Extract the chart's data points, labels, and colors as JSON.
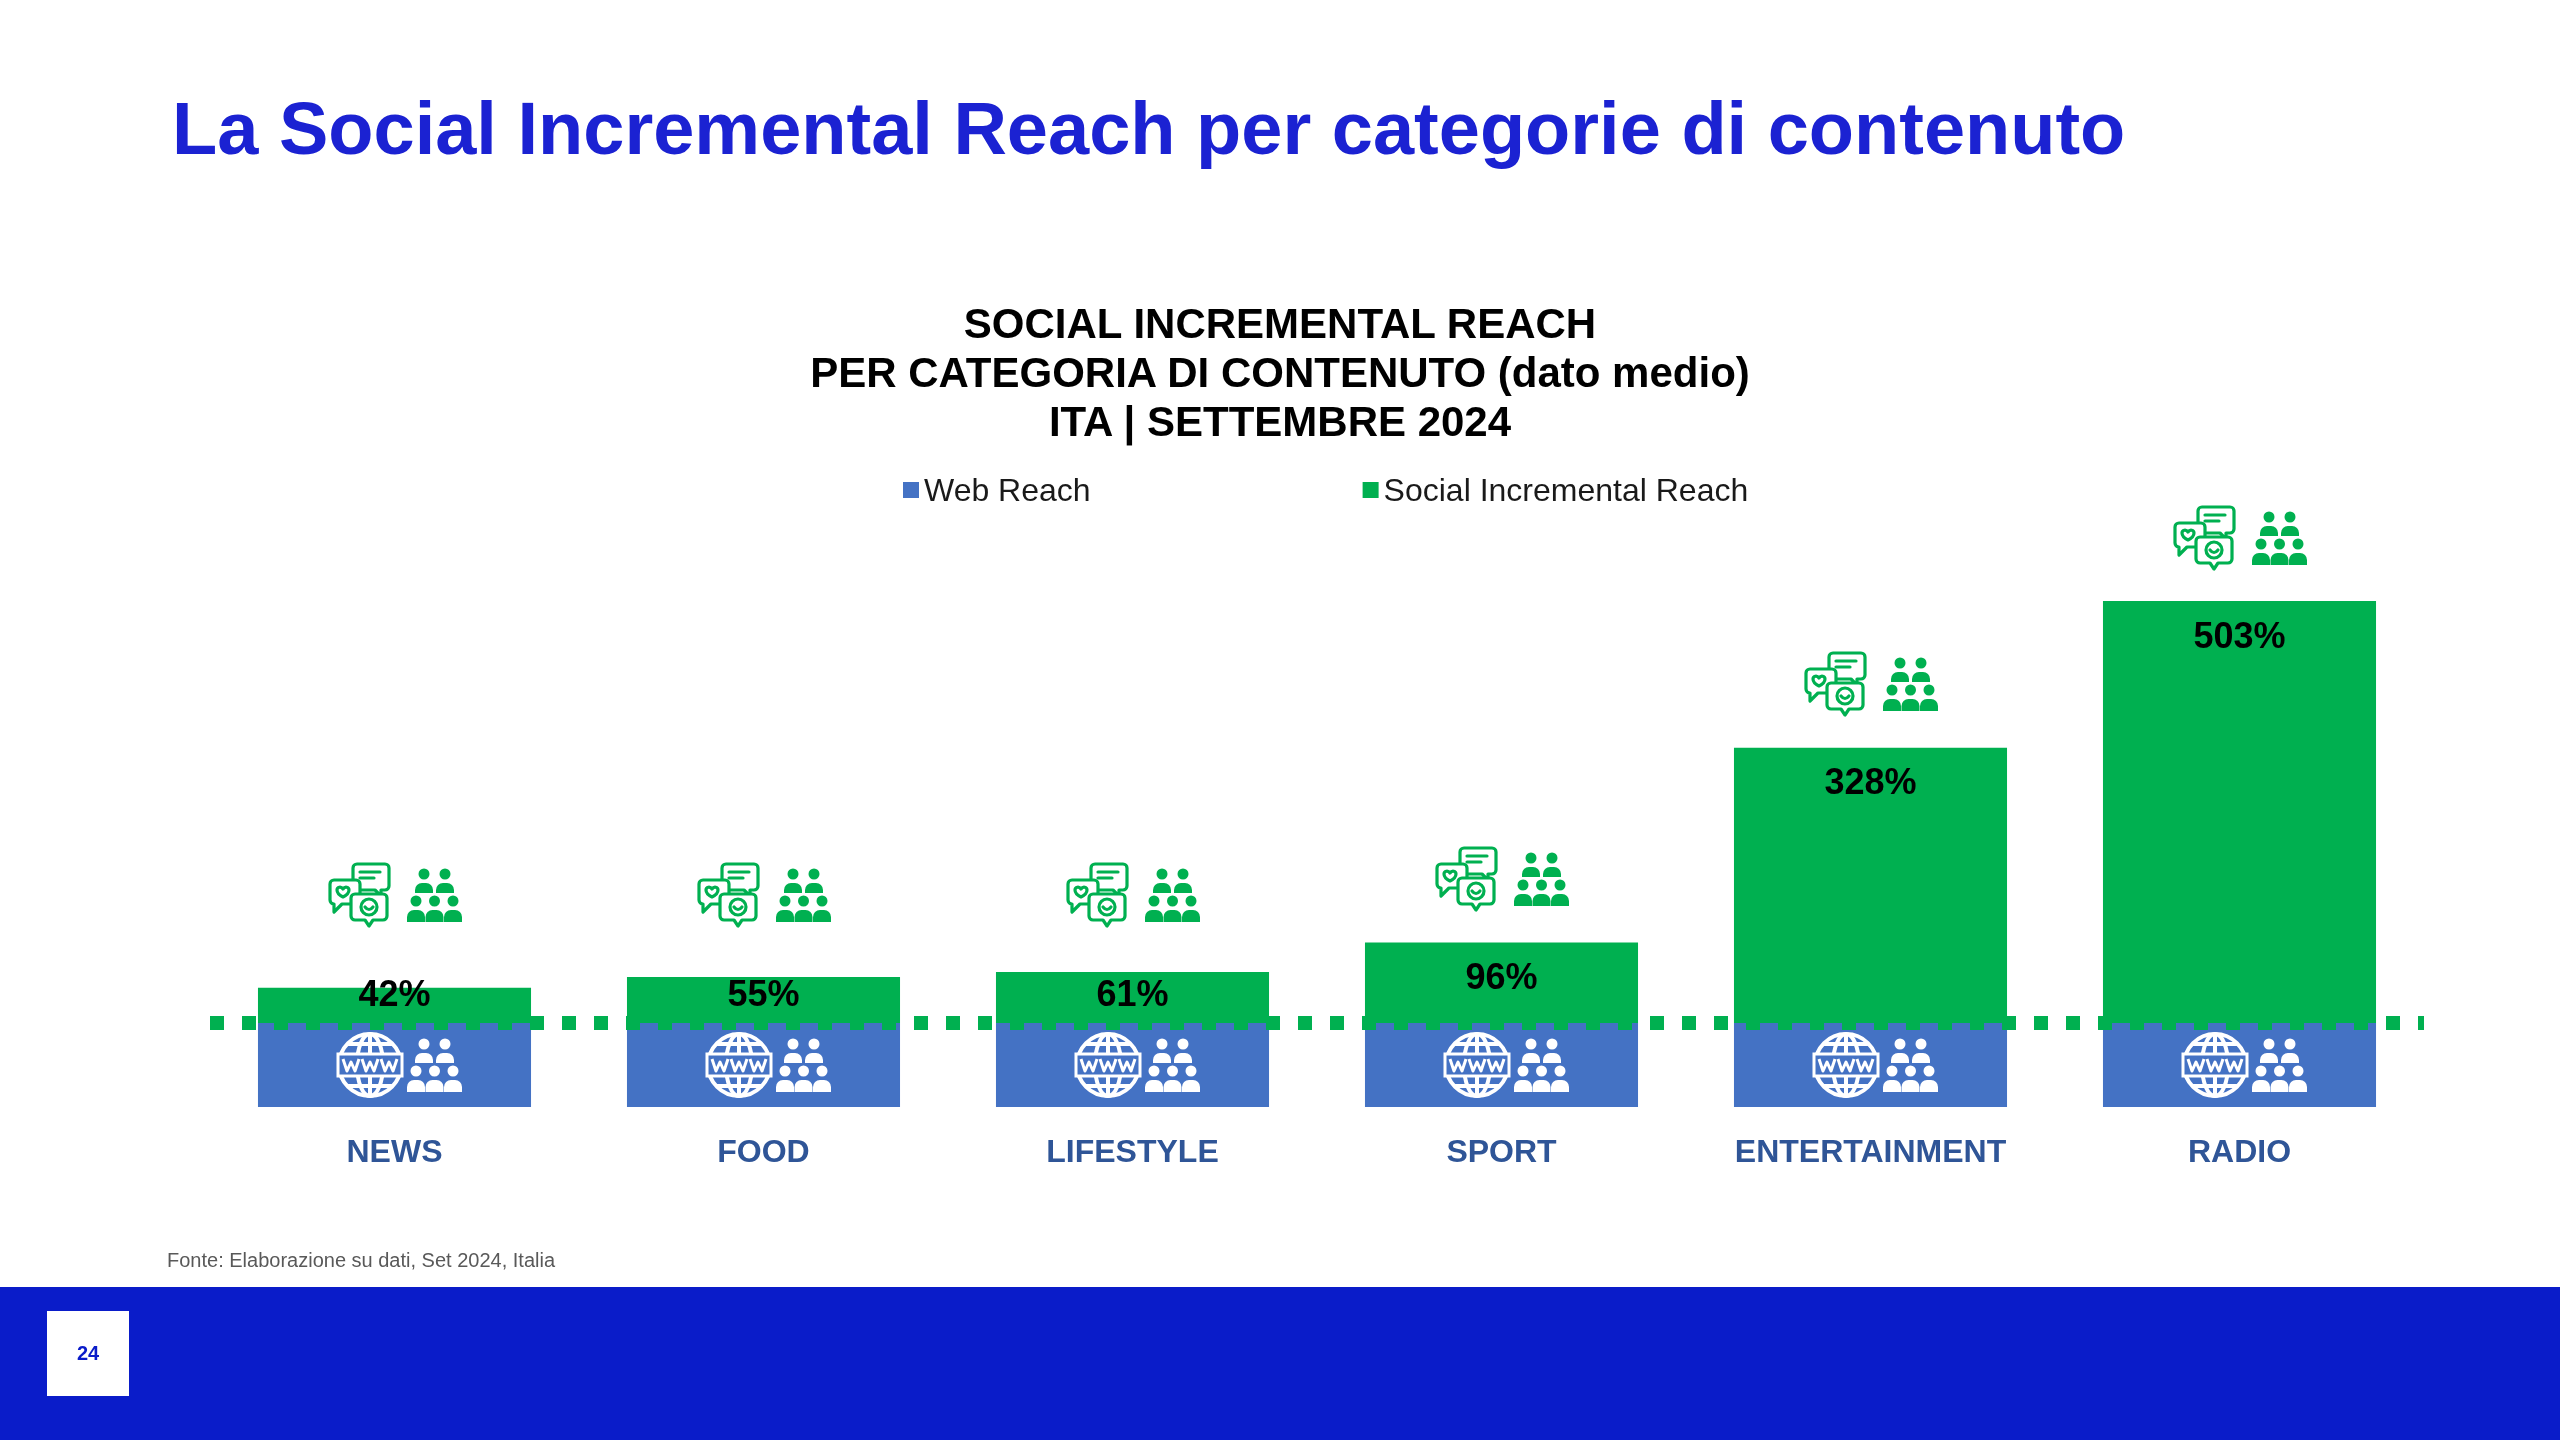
{
  "chart_data": {
    "type": "bar",
    "title": "La Social Incremental Reach per categorie di contenuto",
    "subtitle": "SOCIAL INCREMENTAL REACH\nPER CATEGORIA DI CONTENUTO (dato medio)\nITA | SETTEMBRE 2024",
    "categories": [
      "NEWS",
      "FOOD",
      "LIFESTYLE",
      "SPORT",
      "ENTERTAINMENT",
      "RADIO"
    ],
    "series": [
      {
        "name": "Web Reach",
        "color": "#4472c4",
        "values": [
          100,
          100,
          100,
          100,
          100,
          100
        ]
      },
      {
        "name": "Social Incremental Reach",
        "color": "#00b050",
        "values": [
          42,
          55,
          61,
          96,
          328,
          503
        ],
        "value_labels": [
          "42%",
          "55%",
          "61%",
          "96%",
          "328%",
          "503%"
        ]
      }
    ],
    "stacked": true,
    "legend": "top",
    "grid": false,
    "tick_labels": "x",
    "ref_lines": [
      {
        "axis": "y",
        "value": 100,
        "color": "#00b050",
        "line_style": "dotted"
      }
    ],
    "annotations": [
      "Fonte: Elaborazione su dati, Set 2024, Italia",
      "24"
    ]
  }
}
